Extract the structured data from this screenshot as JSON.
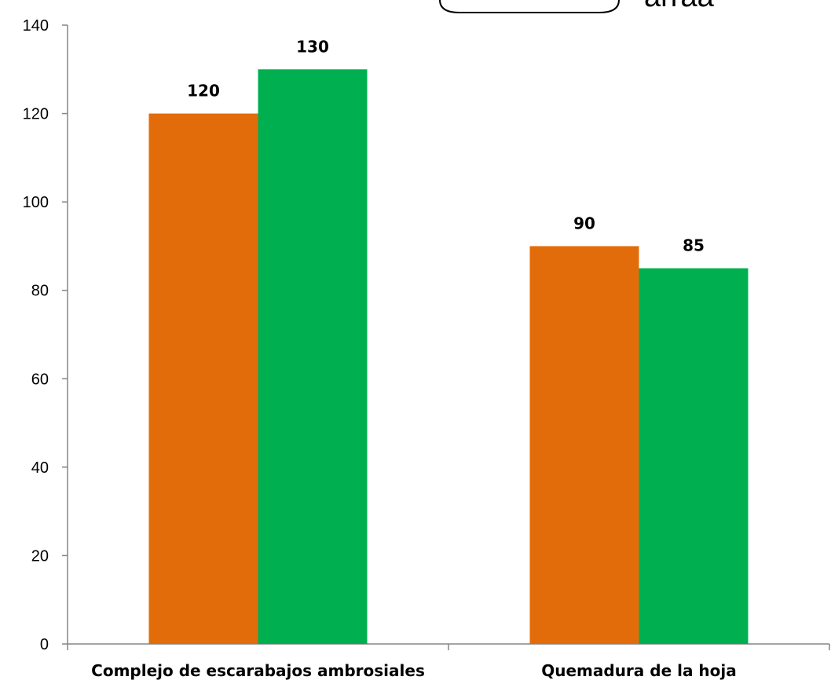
{
  "chart_data": {
    "type": "bar",
    "categories": [
      "Complejo de escarabajos ambrosiales",
      "Quemadura de la hoja"
    ],
    "series": [
      {
        "color": "#E36C0A",
        "values": [
          120,
          90
        ]
      },
      {
        "color": "#00B050",
        "values": [
          130,
          85
        ]
      }
    ],
    "ylim": [
      0,
      140
    ],
    "yticks": [
      0,
      20,
      40,
      60,
      80,
      100,
      120,
      140
    ],
    "grid": false,
    "legend_fragment": "arraa"
  }
}
